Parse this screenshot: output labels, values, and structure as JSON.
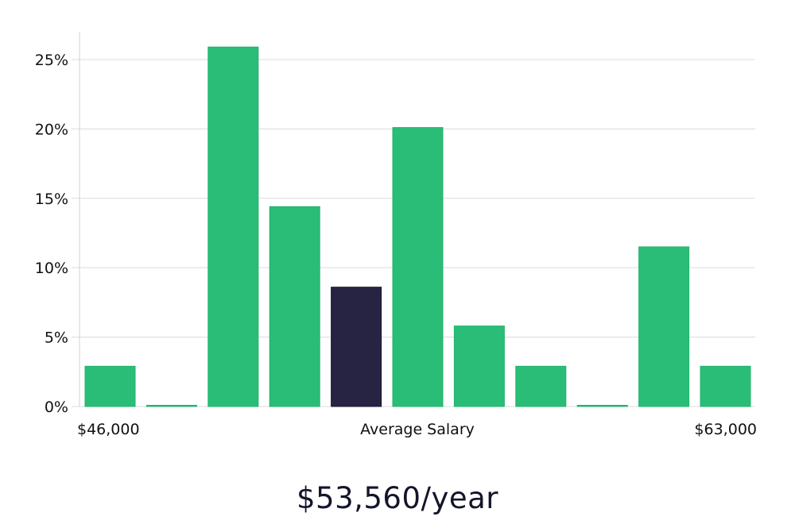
{
  "chart_data": {
    "type": "bar",
    "categories": [
      "1",
      "2",
      "3",
      "4",
      "5",
      "6",
      "7",
      "8",
      "9",
      "10",
      "11"
    ],
    "values": [
      2.9,
      0,
      25.9,
      14.4,
      8.6,
      20.1,
      5.8,
      2.9,
      0,
      11.5,
      2.9
    ],
    "highlight_index": 4,
    "ylim": [
      0,
      27
    ],
    "yticks": [
      0,
      5,
      10,
      15,
      20,
      25
    ],
    "ytick_suffix": "%",
    "x_left_label": "$46,000",
    "x_center_label": "Average Salary",
    "x_right_label": "$63,000",
    "grid": true,
    "legend": "none"
  },
  "colors": {
    "bar": "#2abd77",
    "bar_stroke": "#22b26d",
    "highlight": "#272443",
    "grid": "#dcdcdc",
    "axis": "#d0d0d0",
    "salary_text": "#14142b"
  },
  "salary": {
    "text": "$53,560/year"
  }
}
